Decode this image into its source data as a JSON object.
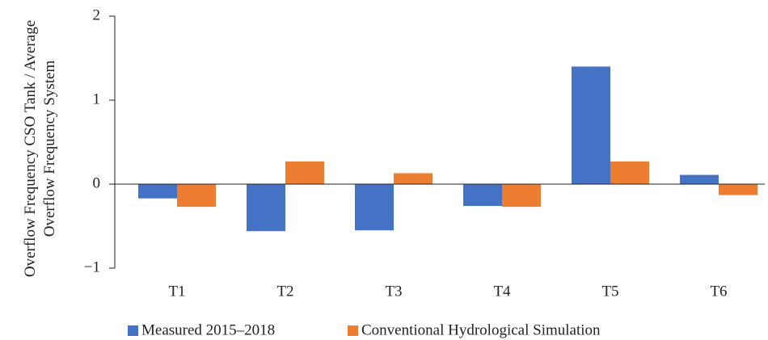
{
  "chart_data": {
    "type": "bar",
    "ylabel": "Overflow Frequency CSO Tank / Average Overflow Frequency System",
    "categories": [
      "T1",
      "T2",
      "T3",
      "T4",
      "T5",
      "T6"
    ],
    "series": [
      {
        "name": "Measured 2015–2018",
        "color": "#4472c4",
        "values": [
          -0.17,
          -0.56,
          -0.55,
          -0.26,
          1.4,
          0.11
        ]
      },
      {
        "name": "Conventional Hydrological Simulation",
        "color": "#ed7d31",
        "values": [
          -0.27,
          0.27,
          0.13,
          -0.27,
          0.27,
          -0.13
        ]
      }
    ],
    "ylim": [
      -1,
      2
    ],
    "yticks": [
      {
        "value": -1,
        "label": "−1"
      },
      0,
      1,
      2
    ],
    "grid": false
  }
}
